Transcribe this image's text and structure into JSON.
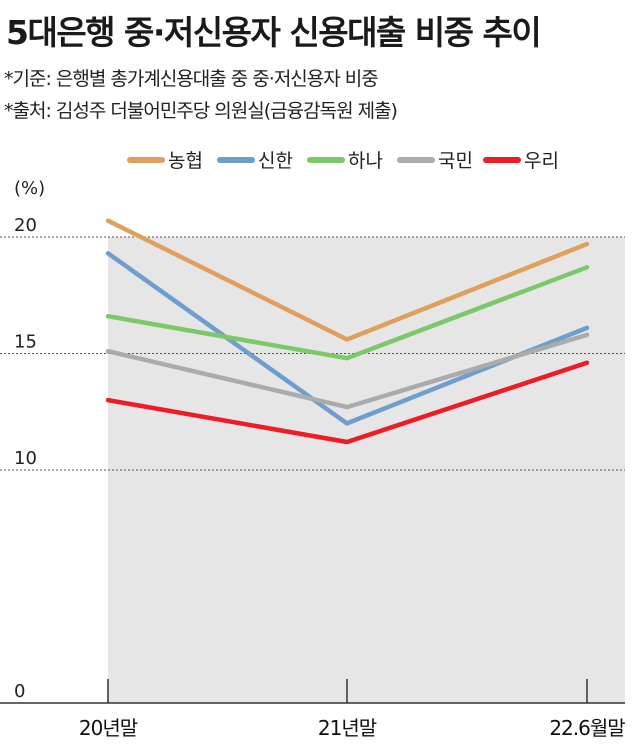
{
  "header": {
    "title": "5대은행 중·저신용자 신용대출 비중 추이",
    "note_basis": "*기준: 은행별 총가계신용대출 중 중·저신용자 비중",
    "note_source": "*출처: 김성주 더불어민주당 의원실(금융감독원 제출)"
  },
  "chart_data": {
    "type": "line",
    "title": "5대은행 중·저신용자 신용대출 비중 추이",
    "unit_label": "(%)",
    "categories": [
      "20년말",
      "21년말",
      "22.6월말"
    ],
    "ylim": [
      0,
      20
    ],
    "yticks": [
      0,
      10,
      15,
      20
    ],
    "grid": true,
    "legend_position": "top",
    "series": [
      {
        "name": "농협",
        "color": "#DFA05E",
        "values": [
          20.7,
          15.6,
          19.7
        ]
      },
      {
        "name": "신한",
        "color": "#6E9FCC",
        "values": [
          19.3,
          12.0,
          16.1
        ]
      },
      {
        "name": "하나",
        "color": "#7CC96A",
        "values": [
          16.6,
          14.8,
          18.7
        ]
      },
      {
        "name": "국민",
        "color": "#ABABAB",
        "values": [
          15.1,
          12.7,
          15.8
        ]
      },
      {
        "name": "우리",
        "color": "#EE1C25",
        "values": [
          13.0,
          11.2,
          14.6
        ]
      }
    ]
  }
}
